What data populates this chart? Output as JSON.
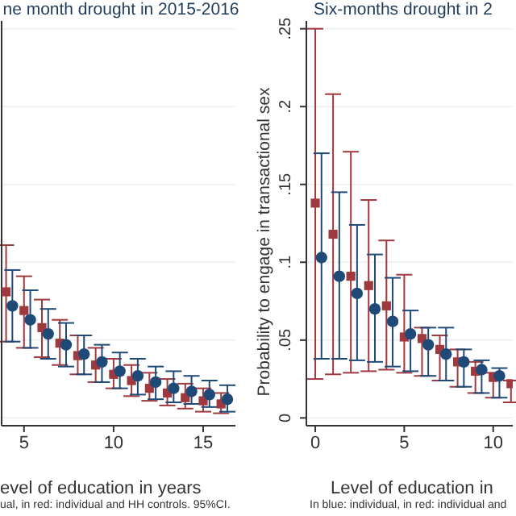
{
  "chart_data": [
    {
      "type": "scatter",
      "title": "ne month drought in 2015-2016",
      "xlabel": "evel of education in years",
      "annotations": [
        "ual, in red: individual and HH controls. 95%CI."
      ],
      "xlim": [
        3.75,
        16.8
      ],
      "xticks": [
        5,
        10,
        15
      ],
      "ylim": [
        -0.005,
        0.255
      ],
      "yticks": [
        {
          "value": 0,
          "label": null
        },
        {
          "value": 0.05,
          "label": null
        },
        {
          "value": 0.1,
          "label": null
        },
        {
          "value": 0.15,
          "label": null
        },
        {
          "value": 0.2,
          "label": null
        },
        {
          "value": 0.25,
          "label": null
        }
      ],
      "tick_labels": "x",
      "grid": "y",
      "legend": false,
      "series": [
        {
          "color": "#9e3a3f",
          "marker": "square",
          "x": [
            4,
            5,
            6,
            7,
            8,
            9,
            10,
            11,
            12,
            13,
            14,
            15,
            16
          ],
          "values": [
            0.081,
            0.069,
            0.058,
            0.048,
            0.04,
            0.034,
            0.028,
            0.024,
            0.019,
            0.016,
            0.013,
            0.011,
            0.009
          ],
          "errors": [
            [
              0.049,
              0.111
            ],
            [
              0.045,
              0.091
            ],
            [
              0.039,
              0.076
            ],
            [
              0.034,
              0.063
            ],
            [
              0.028,
              0.053
            ],
            [
              0.023,
              0.045
            ],
            [
              0.019,
              0.038
            ],
            [
              0.014,
              0.034
            ],
            [
              0.011,
              0.029
            ],
            [
              0.008,
              0.025
            ],
            [
              0.006,
              0.022
            ],
            [
              0.004,
              0.019
            ],
            [
              0.003,
              0.016
            ]
          ]
        },
        {
          "color": "#1f4a78",
          "marker": "circle",
          "x": [
            4.35,
            5.35,
            6.35,
            7.35,
            8.35,
            9.35,
            10.35,
            11.35,
            12.35,
            13.35,
            14.35,
            15.35,
            16.35
          ],
          "values": [
            0.072,
            0.063,
            0.054,
            0.047,
            0.041,
            0.036,
            0.03,
            0.027,
            0.023,
            0.019,
            0.017,
            0.015,
            0.012
          ],
          "errors": [
            [
              0.049,
              0.095
            ],
            [
              0.045,
              0.082
            ],
            [
              0.038,
              0.07
            ],
            [
              0.033,
              0.061
            ],
            [
              0.028,
              0.053
            ],
            [
              0.023,
              0.047
            ],
            [
              0.019,
              0.042
            ],
            [
              0.015,
              0.038
            ],
            [
              0.012,
              0.033
            ],
            [
              0.01,
              0.03
            ],
            [
              0.009,
              0.027
            ],
            [
              0.007,
              0.024
            ],
            [
              0.004,
              0.021
            ]
          ]
        }
      ]
    },
    {
      "type": "scatter",
      "title": "Six-months drought in 2",
      "xlabel": "Level of education in",
      "ylabel": "Probability to engage in transactional sex",
      "annotations": [
        "In blue: individual, in red: individual and"
      ],
      "xlim": [
        -0.5,
        11.1
      ],
      "xticks": [
        0,
        5,
        10
      ],
      "ylim": [
        -0.005,
        0.255
      ],
      "yticks": [
        0,
        {
          "value": 0.05,
          "label": ".05"
        },
        {
          "value": 0.1,
          "label": ".1"
        },
        {
          "value": 0.15,
          "label": ".15"
        },
        {
          "value": 0.2,
          "label": ".2"
        },
        {
          "value": 0.25,
          "label": ".25"
        }
      ],
      "grid": "y",
      "legend": false,
      "series": [
        {
          "color": "#9e3a3f",
          "marker": "square",
          "x": [
            0,
            1,
            2,
            3,
            4,
            5,
            6,
            7,
            8,
            9,
            10,
            11
          ],
          "values": [
            0.138,
            0.118,
            0.091,
            0.085,
            0.072,
            0.052,
            0.051,
            0.044,
            0.036,
            0.03,
            0.026,
            0.022
          ],
          "errors": [
            [
              0.025,
              0.25
            ],
            [
              0.028,
              0.208
            ],
            [
              0.029,
              0.171
            ],
            [
              0.03,
              0.14
            ],
            [
              0.031,
              0.114
            ],
            [
              0.029,
              0.092
            ],
            [
              0.027,
              0.058
            ],
            [
              0.024,
              0.053
            ],
            [
              0.02,
              0.044
            ],
            [
              0.016,
              0.036
            ],
            [
              0.013,
              0.029
            ],
            [
              0.01,
              0.024
            ]
          ]
        },
        {
          "color": "#1f4a78",
          "marker": "circle",
          "x": [
            0.35,
            1.35,
            2.35,
            3.35,
            4.35,
            5.35,
            6.35,
            7.35,
            8.35,
            9.35,
            10.35
          ],
          "values": [
            0.103,
            0.091,
            0.08,
            0.07,
            0.062,
            0.054,
            0.047,
            0.041,
            0.036,
            0.031,
            0.027
          ],
          "errors": [
            [
              0.038,
              0.17
            ],
            [
              0.038,
              0.145
            ],
            [
              0.037,
              0.124
            ],
            [
              0.036,
              0.105
            ],
            [
              0.033,
              0.09
            ],
            [
              0.03,
              0.069
            ],
            [
              0.027,
              0.058
            ],
            [
              0.024,
              0.058
            ],
            [
              0.02,
              0.044
            ],
            [
              0.016,
              0.037
            ],
            [
              0.013,
              0.032
            ]
          ]
        }
      ]
    }
  ]
}
